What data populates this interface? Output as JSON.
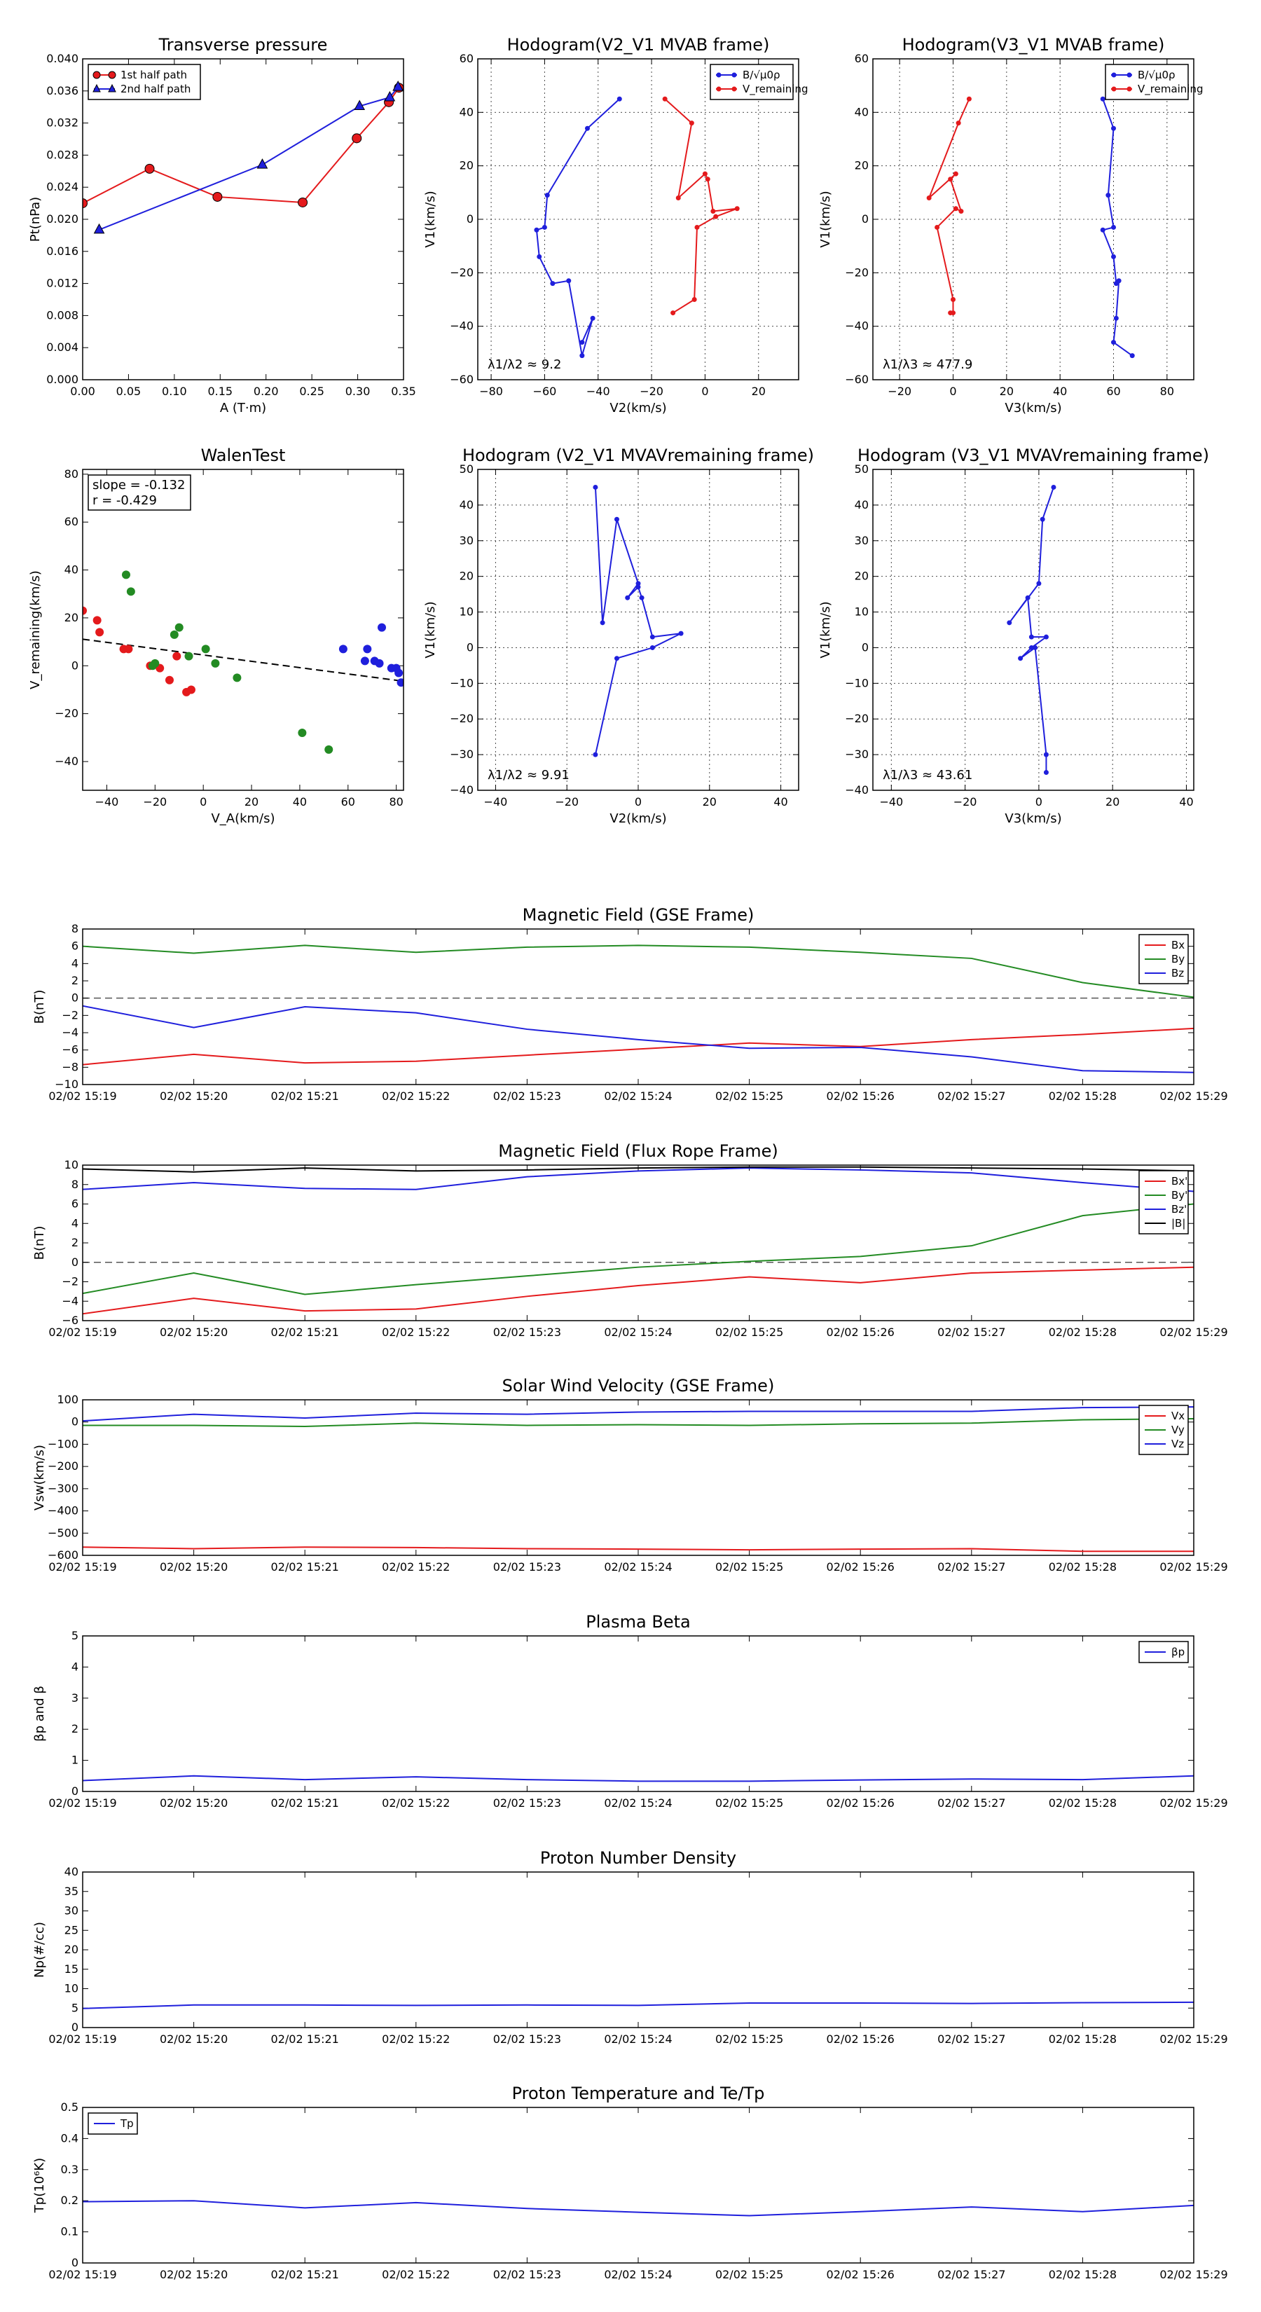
{
  "colors": {
    "red": "#e41a1c",
    "blue": "#1f1fdc",
    "green": "#238b23",
    "black": "#000000",
    "grid": "#000000"
  },
  "chart_data": [
    {
      "id": "transverse",
      "type": "scatter",
      "title": "Transverse pressure",
      "xlabel": "A (T·m)",
      "ylabel": "Pt(nPa)",
      "xlim": [
        0.0,
        0.35
      ],
      "ylim": [
        0.0,
        0.04
      ],
      "xticks": [
        0.0,
        0.05,
        0.1,
        0.15,
        0.2,
        0.25,
        0.3,
        0.35
      ],
      "xticklabels": [
        "0.00",
        "0.05",
        "0.10",
        "0.15",
        "0.20",
        "0.25",
        "0.30",
        "0.35"
      ],
      "yticks": [
        0.0,
        0.004,
        0.008,
        0.012,
        0.016,
        0.02,
        0.024,
        0.028,
        0.032,
        0.036,
        0.04
      ],
      "yticklabels": [
        "0.000",
        "0.004",
        "0.008",
        "0.012",
        "0.016",
        "0.020",
        "0.024",
        "0.028",
        "0.032",
        "0.036",
        "0.040"
      ],
      "grid": false,
      "legend": "top-left",
      "series": [
        {
          "name": "1st half path",
          "color": "red",
          "marker": "circle",
          "x": [
            0.0,
            0.073,
            0.147,
            0.24,
            0.299,
            0.334,
            0.345
          ],
          "y": [
            0.022,
            0.0263,
            0.0228,
            0.0221,
            0.0301,
            0.0346,
            0.0364
          ]
        },
        {
          "name": "2nd half path",
          "color": "blue",
          "marker": "triangle",
          "x": [
            0.018,
            0.196,
            0.302,
            0.335,
            0.344
          ],
          "y": [
            0.0187,
            0.0268,
            0.0341,
            0.0352,
            0.0365
          ]
        }
      ]
    },
    {
      "id": "hodo_mvab_v2",
      "type": "line",
      "title": "Hodogram(V2_V1 MVAB frame)",
      "xlabel": "V2(km/s)",
      "ylabel": "V1(km/s)",
      "xlim": [
        -85,
        35
      ],
      "ylim": [
        -60,
        60
      ],
      "xticks": [
        -80,
        -60,
        -40,
        -20,
        0,
        20
      ],
      "yticks": [
        -60,
        -40,
        -20,
        0,
        20,
        40,
        60
      ],
      "grid": true,
      "legend": "top-right",
      "annotation": "λ1/λ2 ≈ 9.2",
      "series": [
        {
          "name": "B/√μ0ρ",
          "color": "blue",
          "x": [
            -32,
            -44,
            -59,
            -60,
            -63,
            -62,
            -57,
            -51,
            -46,
            -42,
            -46
          ],
          "y": [
            45,
            34,
            9,
            -3,
            -4,
            -14,
            -24,
            -23,
            -51,
            -37,
            -46
          ]
        },
        {
          "name": "V_remaining",
          "color": "red",
          "x": [
            -15,
            -5,
            -10,
            0,
            1,
            3,
            12,
            4,
            -3,
            -4,
            -12
          ],
          "y": [
            45,
            36,
            8,
            17,
            15,
            3,
            4,
            1,
            -3,
            -30,
            -35
          ]
        }
      ]
    },
    {
      "id": "hodo_mvab_v3",
      "type": "line",
      "title": "Hodogram(V3_V1 MVAB frame)",
      "xlabel": "V3(km/s)",
      "ylabel": "V1(km/s)",
      "xlim": [
        -30,
        90
      ],
      "ylim": [
        -60,
        60
      ],
      "xticks": [
        -20,
        0,
        20,
        40,
        60,
        80
      ],
      "yticks": [
        -60,
        -40,
        -20,
        0,
        20,
        40,
        60
      ],
      "grid": true,
      "legend": "top-right",
      "annotation": "λ1/λ3 ≈ 477.9",
      "series": [
        {
          "name": "B/√μ0ρ",
          "color": "blue",
          "x": [
            56,
            60,
            58,
            60,
            56,
            60,
            61,
            62,
            61,
            60,
            67
          ],
          "y": [
            45,
            34,
            9,
            -3,
            -4,
            -14,
            -24,
            -23,
            -37,
            -46,
            -51
          ]
        },
        {
          "name": "V_remaining",
          "color": "red",
          "x": [
            6,
            2,
            -9,
            1,
            -1,
            3,
            1,
            -6,
            0,
            0,
            -1
          ],
          "y": [
            45,
            36,
            8,
            17,
            15,
            3,
            4,
            -3,
            -30,
            -35,
            -35
          ]
        }
      ]
    },
    {
      "id": "walen",
      "type": "scatter",
      "title": "WalenTest",
      "xlabel": "V_A(km/s)",
      "ylabel": "V_remaining(km/s)",
      "xlim": [
        -50,
        83
      ],
      "ylim": [
        -52,
        82
      ],
      "xticks": [
        -40,
        -20,
        0,
        20,
        40,
        60,
        80
      ],
      "yticks": [
        -40,
        -20,
        0,
        20,
        40,
        60,
        80
      ],
      "grid": false,
      "annotation_lines": [
        "slope = -0.132",
        "r = -0.429"
      ],
      "fit": {
        "slope": -0.132,
        "intercept": 4.5
      },
      "series": [
        {
          "color": "red",
          "x": [
            -50,
            -44,
            -43,
            -33,
            -31,
            -22,
            -18,
            -14,
            -11,
            -7,
            -5
          ],
          "y": [
            23,
            19,
            14,
            7,
            7,
            0,
            -1,
            -6,
            4,
            -11,
            -10
          ]
        },
        {
          "color": "green",
          "x": [
            -32,
            -30,
            -20,
            -21,
            -12,
            -10,
            -6,
            1,
            5,
            14,
            41,
            52
          ],
          "y": [
            38,
            31,
            1,
            0,
            13,
            16,
            4,
            7,
            1,
            -5,
            -28,
            -35
          ]
        },
        {
          "color": "blue",
          "x": [
            58,
            67,
            68,
            71,
            73,
            74,
            78,
            80,
            81,
            82
          ],
          "y": [
            7,
            2,
            7,
            2,
            1,
            16,
            -1,
            -1,
            -3,
            -7
          ]
        }
      ]
    },
    {
      "id": "hodo_mvav_v2",
      "type": "line",
      "title": "Hodogram (V2_V1 MVAVremaining frame)",
      "xlabel": "V2(km/s)",
      "ylabel": "V1(km/s)",
      "xlim": [
        -45,
        45
      ],
      "ylim": [
        -40,
        50
      ],
      "xticks": [
        -40,
        -20,
        0,
        20,
        40
      ],
      "yticks": [
        -40,
        -30,
        -20,
        -10,
        0,
        10,
        20,
        30,
        40,
        50
      ],
      "grid": true,
      "annotation": "λ1/λ2 ≈ 9.91",
      "series": [
        {
          "color": "blue",
          "x": [
            -12,
            -10,
            -6,
            0,
            -3,
            0,
            1,
            4,
            12,
            4,
            -6,
            -12
          ],
          "y": [
            45,
            7,
            36,
            18,
            14,
            17,
            14,
            3,
            4,
            0,
            -3,
            -30
          ]
        }
      ]
    },
    {
      "id": "hodo_mvav_v3",
      "type": "line",
      "title": "Hodogram (V3_V1 MVAVremaining frame)",
      "xlabel": "V3(km/s)",
      "ylabel": "V1(km/s)",
      "xlim": [
        -45,
        42
      ],
      "ylim": [
        -40,
        50
      ],
      "xticks": [
        -40,
        -20,
        0,
        20,
        40
      ],
      "yticks": [
        -40,
        -30,
        -20,
        -10,
        0,
        10,
        20,
        30,
        40,
        50
      ],
      "grid": true,
      "annotation": "λ1/λ3 ≈ 43.61",
      "series": [
        {
          "color": "blue",
          "x": [
            4,
            1,
            0,
            -8,
            -3,
            -2,
            2,
            -2,
            -5,
            -1,
            2,
            2
          ],
          "y": [
            45,
            36,
            18,
            7,
            14,
            3,
            3,
            0,
            -3,
            0,
            -30,
            -35
          ]
        }
      ]
    },
    {
      "id": "mag_gse",
      "type": "line",
      "title": "Magnetic Field (GSE Frame)",
      "ylabel": "B(nT)",
      "ylim": [
        -10,
        8
      ],
      "yticks": [
        -10,
        -8,
        -6,
        -4,
        -2,
        0,
        2,
        4,
        6,
        8
      ],
      "zero_line": true,
      "legend": "top-right",
      "categories": [
        "02/02 15:19",
        "02/02 15:20",
        "02/02 15:21",
        "02/02 15:22",
        "02/02 15:23",
        "02/02 15:24",
        "02/02 15:25",
        "02/02 15:26",
        "02/02 15:27",
        "02/02 15:28",
        "02/02 15:29"
      ],
      "series": [
        {
          "name": "Bx",
          "color": "red",
          "values": [
            -7.7,
            -6.5,
            -7.5,
            -7.3,
            -6.6,
            -5.9,
            -5.2,
            -5.6,
            -4.8,
            -4.2,
            -3.5
          ]
        },
        {
          "name": "By",
          "color": "green",
          "values": [
            6.0,
            5.2,
            6.1,
            5.3,
            5.9,
            6.1,
            5.9,
            5.3,
            4.6,
            1.8,
            0.1
          ]
        },
        {
          "name": "Bz",
          "color": "blue",
          "values": [
            -0.9,
            -3.4,
            -1.0,
            -1.7,
            -3.6,
            -4.8,
            -5.8,
            -5.7,
            -6.8,
            -8.4,
            -8.6
          ]
        }
      ]
    },
    {
      "id": "mag_fr",
      "type": "line",
      "title": "Magnetic Field (Flux Rope Frame)",
      "ylabel": "B(nT)",
      "ylim": [
        -6,
        10
      ],
      "yticks": [
        -6,
        -4,
        -2,
        0,
        2,
        4,
        6,
        8,
        10
      ],
      "zero_line": true,
      "legend": "top-right",
      "categories": [
        "02/02 15:19",
        "02/02 15:20",
        "02/02 15:21",
        "02/02 15:22",
        "02/02 15:23",
        "02/02 15:24",
        "02/02 15:25",
        "02/02 15:26",
        "02/02 15:27",
        "02/02 15:28",
        "02/02 15:29"
      ],
      "series": [
        {
          "name": "Bx'",
          "color": "red",
          "values": [
            -5.3,
            -3.7,
            -5.0,
            -4.8,
            -3.5,
            -2.4,
            -1.5,
            -2.1,
            -1.1,
            -0.8,
            -0.5
          ]
        },
        {
          "name": "By'",
          "color": "green",
          "values": [
            -3.2,
            -1.1,
            -3.3,
            -2.3,
            -1.4,
            -0.5,
            0.1,
            0.6,
            1.7,
            4.8,
            6.0
          ]
        },
        {
          "name": "Bz'",
          "color": "blue",
          "values": [
            7.5,
            8.2,
            7.6,
            7.5,
            8.8,
            9.4,
            9.7,
            9.5,
            9.2,
            8.2,
            7.3
          ]
        },
        {
          "name": "|B|",
          "color": "black",
          "values": [
            9.6,
            9.3,
            9.7,
            9.4,
            9.5,
            9.7,
            9.8,
            9.8,
            9.7,
            9.6,
            9.4
          ]
        }
      ]
    },
    {
      "id": "vsw",
      "type": "line",
      "title": "Solar Wind Velocity (GSE Frame)",
      "ylabel": "Vsw(km/s)",
      "ylim": [
        -600,
        100
      ],
      "yticks": [
        -600,
        -500,
        -400,
        -300,
        -200,
        -100,
        0,
        100
      ],
      "legend": "top-right",
      "categories": [
        "02/02 15:19",
        "02/02 15:20",
        "02/02 15:21",
        "02/02 15:22",
        "02/02 15:23",
        "02/02 15:24",
        "02/02 15:25",
        "02/02 15:26",
        "02/02 15:27",
        "02/02 15:28",
        "02/02 15:29"
      ],
      "series": [
        {
          "name": "Vx",
          "color": "red",
          "values": [
            -563,
            -570,
            -563,
            -565,
            -570,
            -572,
            -575,
            -572,
            -570,
            -582,
            -582
          ]
        },
        {
          "name": "Vy",
          "color": "green",
          "values": [
            -15,
            -15,
            -20,
            -5,
            -15,
            -12,
            -15,
            -8,
            -5,
            10,
            15
          ]
        },
        {
          "name": "Vz",
          "color": "blue",
          "values": [
            5,
            35,
            18,
            40,
            35,
            45,
            48,
            48,
            48,
            65,
            68
          ]
        }
      ]
    },
    {
      "id": "beta",
      "type": "line",
      "title": "Plasma Beta",
      "ylabel": "βp and β",
      "ylim": [
        0,
        5
      ],
      "yticks": [
        0,
        1,
        2,
        3,
        4,
        5
      ],
      "legend": "top-right",
      "categories": [
        "02/02 15:19",
        "02/02 15:20",
        "02/02 15:21",
        "02/02 15:22",
        "02/02 15:23",
        "02/02 15:24",
        "02/02 15:25",
        "02/02 15:26",
        "02/02 15:27",
        "02/02 15:28",
        "02/02 15:29"
      ],
      "series": [
        {
          "name": "βp",
          "color": "blue",
          "values": [
            0.35,
            0.5,
            0.38,
            0.47,
            0.38,
            0.33,
            0.33,
            0.37,
            0.4,
            0.38,
            0.5
          ]
        }
      ]
    },
    {
      "id": "np",
      "type": "line",
      "title": "Proton Number Density",
      "ylabel": "Np(#/cc)",
      "ylim": [
        0,
        40
      ],
      "yticks": [
        0,
        5,
        10,
        15,
        20,
        25,
        30,
        35,
        40
      ],
      "categories": [
        "02/02 15:19",
        "02/02 15:20",
        "02/02 15:21",
        "02/02 15:22",
        "02/02 15:23",
        "02/02 15:24",
        "02/02 15:25",
        "02/02 15:26",
        "02/02 15:27",
        "02/02 15:28",
        "02/02 15:29"
      ],
      "series": [
        {
          "color": "blue",
          "values": [
            4.9,
            5.8,
            5.8,
            5.7,
            5.8,
            5.7,
            6.3,
            6.3,
            6.2,
            6.4,
            6.5
          ]
        }
      ]
    },
    {
      "id": "tp",
      "type": "line",
      "title": "Proton Temperature and Te/Tp",
      "ylabel": "Tp(10⁶K)",
      "ylim": [
        0,
        0.5
      ],
      "yticks": [
        0,
        0.1,
        0.2,
        0.3,
        0.4,
        0.5
      ],
      "legend": "top-left",
      "categories": [
        "02/02 15:19",
        "02/02 15:20",
        "02/02 15:21",
        "02/02 15:22",
        "02/02 15:23",
        "02/02 15:24",
        "02/02 15:25",
        "02/02 15:26",
        "02/02 15:27",
        "02/02 15:28",
        "02/02 15:29"
      ],
      "series": [
        {
          "name": "Tp",
          "color": "blue",
          "values": [
            0.197,
            0.2,
            0.177,
            0.194,
            0.175,
            0.163,
            0.152,
            0.165,
            0.18,
            0.165,
            0.185
          ]
        }
      ]
    }
  ]
}
